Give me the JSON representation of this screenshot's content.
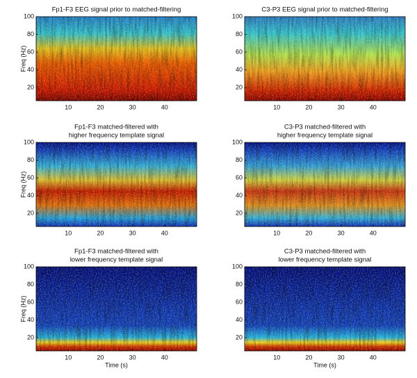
{
  "chart_data": [
    {
      "type": "heatmap",
      "title": [
        "Fp1-F3 EEG signal prior to matched-filtering"
      ],
      "ylabel": "Freq (Hz)",
      "xlim": [
        0,
        50
      ],
      "ylim": [
        5,
        100
      ],
      "xticks": [
        10,
        20,
        30,
        40
      ],
      "yticks": [
        20,
        40,
        60,
        80,
        100
      ]
    },
    {
      "type": "heatmap",
      "title": [
        "C3-P3 EEG signal prior to matched-filtering"
      ],
      "xlim": [
        0,
        50
      ],
      "ylim": [
        5,
        100
      ],
      "xticks": [
        10,
        20,
        30,
        40
      ],
      "yticks": [
        20,
        40,
        60,
        80,
        100
      ]
    },
    {
      "type": "heatmap",
      "title": [
        "Fp1-F3 matched-filtered with",
        "higher frequency template signal"
      ],
      "ylabel": "Freq (Hz)",
      "xlim": [
        0,
        50
      ],
      "ylim": [
        5,
        100
      ],
      "xticks": [
        10,
        20,
        30,
        40
      ],
      "yticks": [
        20,
        40,
        60,
        80,
        100
      ]
    },
    {
      "type": "heatmap",
      "title": [
        "C3-P3 matched-filtered with",
        "higher frequency template signal"
      ],
      "xlim": [
        0,
        50
      ],
      "ylim": [
        5,
        100
      ],
      "xticks": [
        10,
        20,
        30,
        40
      ],
      "yticks": [
        20,
        40,
        60,
        80,
        100
      ]
    },
    {
      "type": "heatmap",
      "title": [
        "Fp1-F3 matched-filtered with",
        "lower frequency template signal"
      ],
      "ylabel": "Freq (Hz)",
      "xlabel": "Time (s)",
      "xlim": [
        0,
        50
      ],
      "ylim": [
        5,
        100
      ],
      "xticks": [
        10,
        20,
        30,
        40
      ],
      "yticks": [
        20,
        40,
        60,
        80,
        100
      ]
    },
    {
      "type": "heatmap",
      "title": [
        "C3-P3 matched-filtered with",
        "lower frequency template signal"
      ],
      "xlabel": "Time (s)",
      "xlim": [
        0,
        50
      ],
      "ylim": [
        5,
        100
      ],
      "xticks": [
        10,
        20,
        30,
        40
      ],
      "yticks": [
        20,
        40,
        60,
        80,
        100
      ]
    }
  ]
}
